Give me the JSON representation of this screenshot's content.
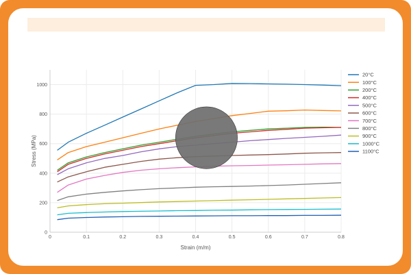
{
  "chart_data": {
    "type": "line",
    "title": "",
    "xlabel": "Strain (m/m)",
    "ylabel": "Stress (MPa)",
    "xlim": [
      0,
      0.8
    ],
    "ylim": [
      0,
      1100
    ],
    "xticks": [
      0,
      0.1,
      0.2,
      0.3,
      0.4,
      0.5,
      0.6,
      0.7,
      0.8
    ],
    "xtick_labels": [
      "0",
      "0.1",
      "0.2",
      "0.3",
      "0.4",
      "0.5",
      "0.6",
      "0.7",
      "0.8"
    ],
    "yticks": [
      0,
      200,
      400,
      600,
      800,
      1000
    ],
    "ytick_labels": [
      "0",
      "200",
      "400",
      "600",
      "800",
      "1000"
    ],
    "grid": true,
    "legend_position": "right",
    "overlay": {
      "shape": "circle",
      "color": "#6f6f6f",
      "center": [
        0.43,
        640
      ],
      "radius_x": 0.085
    },
    "series": [
      {
        "name": "20°C",
        "color": "#1f77b4",
        "x": [
          0.02,
          0.05,
          0.1,
          0.15,
          0.2,
          0.25,
          0.3,
          0.35,
          0.4,
          0.45,
          0.5,
          0.55,
          0.6,
          0.65,
          0.7,
          0.75,
          0.8
        ],
        "y": [
          555,
          610,
          670,
          725,
          780,
          835,
          890,
          945,
          995,
          1000,
          1008,
          1007,
          1005,
          1003,
          1000,
          997,
          993
        ]
      },
      {
        "name": "100°C",
        "color": "#ff7f0e",
        "x": [
          0.02,
          0.05,
          0.1,
          0.15,
          0.2,
          0.25,
          0.3,
          0.35,
          0.4,
          0.45,
          0.5,
          0.55,
          0.6,
          0.65,
          0.7,
          0.75,
          0.8
        ],
        "y": [
          490,
          540,
          580,
          610,
          640,
          670,
          700,
          725,
          750,
          770,
          790,
          805,
          820,
          823,
          828,
          825,
          822
        ]
      },
      {
        "name": "200°C",
        "color": "#2ca02c",
        "x": [
          0.02,
          0.05,
          0.1,
          0.15,
          0.2,
          0.25,
          0.3,
          0.35,
          0.4,
          0.45,
          0.5,
          0.55,
          0.6,
          0.65,
          0.7,
          0.75,
          0.8
        ],
        "y": [
          420,
          470,
          510,
          540,
          565,
          590,
          610,
          630,
          650,
          665,
          680,
          690,
          700,
          705,
          710,
          712,
          710
        ]
      },
      {
        "name": "400°C",
        "color": "#d62728",
        "x": [
          0.02,
          0.05,
          0.1,
          0.15,
          0.2,
          0.25,
          0.3,
          0.35,
          0.4,
          0.45,
          0.5,
          0.55,
          0.6,
          0.65,
          0.7,
          0.75,
          0.8
        ],
        "y": [
          410,
          460,
          500,
          530,
          555,
          580,
          600,
          620,
          640,
          655,
          670,
          680,
          690,
          697,
          705,
          708,
          710
        ]
      },
      {
        "name": "500°C",
        "color": "#9467bd",
        "x": [
          0.02,
          0.05,
          0.1,
          0.15,
          0.2,
          0.25,
          0.3,
          0.35,
          0.4,
          0.45,
          0.5,
          0.55,
          0.6,
          0.65,
          0.7,
          0.75,
          0.8
        ],
        "y": [
          390,
          430,
          470,
          500,
          520,
          545,
          565,
          580,
          590,
          600,
          610,
          620,
          628,
          636,
          643,
          650,
          658
        ]
      },
      {
        "name": "600°C",
        "color": "#8c564b",
        "x": [
          0.02,
          0.05,
          0.1,
          0.15,
          0.2,
          0.25,
          0.3,
          0.35,
          0.4,
          0.45,
          0.5,
          0.55,
          0.6,
          0.65,
          0.7,
          0.75,
          0.8
        ],
        "y": [
          340,
          375,
          410,
          440,
          460,
          480,
          495,
          505,
          512,
          516,
          520,
          523,
          526,
          530,
          535,
          538,
          540
        ]
      },
      {
        "name": "700°C",
        "color": "#e377c2",
        "x": [
          0.02,
          0.05,
          0.1,
          0.15,
          0.2,
          0.25,
          0.3,
          0.35,
          0.4,
          0.45,
          0.5,
          0.55,
          0.6,
          0.65,
          0.7,
          0.75,
          0.8
        ],
        "y": [
          270,
          320,
          360,
          385,
          405,
          420,
          430,
          437,
          443,
          447,
          450,
          452,
          455,
          457,
          460,
          463,
          465
        ]
      },
      {
        "name": "800°C",
        "color": "#7f7f7f",
        "x": [
          0.02,
          0.05,
          0.1,
          0.15,
          0.2,
          0.25,
          0.3,
          0.35,
          0.4,
          0.45,
          0.5,
          0.55,
          0.6,
          0.65,
          0.7,
          0.75,
          0.8
        ],
        "y": [
          215,
          240,
          258,
          270,
          280,
          288,
          295,
          300,
          305,
          308,
          310,
          313,
          316,
          320,
          325,
          330,
          335
        ]
      },
      {
        "name": "900°C",
        "color": "#bcbd22",
        "x": [
          0.02,
          0.05,
          0.1,
          0.15,
          0.2,
          0.25,
          0.3,
          0.35,
          0.4,
          0.45,
          0.5,
          0.55,
          0.6,
          0.65,
          0.7,
          0.75,
          0.8
        ],
        "y": [
          165,
          178,
          187,
          193,
          197,
          201,
          205,
          208,
          211,
          214,
          217,
          220,
          223,
          226,
          229,
          232,
          235
        ]
      },
      {
        "name": "1000°C",
        "color": "#17becf",
        "x": [
          0.02,
          0.05,
          0.1,
          0.15,
          0.2,
          0.25,
          0.3,
          0.35,
          0.4,
          0.45,
          0.5,
          0.55,
          0.6,
          0.65,
          0.7,
          0.75,
          0.8
        ],
        "y": [
          118,
          128,
          133,
          137,
          140,
          142,
          144,
          146,
          147,
          149,
          150,
          152,
          153,
          154,
          155,
          156,
          157
        ]
      },
      {
        "name": "1100°C",
        "color": "#1f5fb4",
        "x": [
          0.02,
          0.05,
          0.1,
          0.15,
          0.2,
          0.25,
          0.3,
          0.35,
          0.4,
          0.45,
          0.5,
          0.55,
          0.6,
          0.65,
          0.7,
          0.75,
          0.8
        ],
        "y": [
          85,
          95,
          100,
          103,
          105,
          107,
          108,
          109,
          110,
          111,
          112,
          112,
          113,
          113,
          114,
          114,
          115
        ]
      }
    ]
  }
}
